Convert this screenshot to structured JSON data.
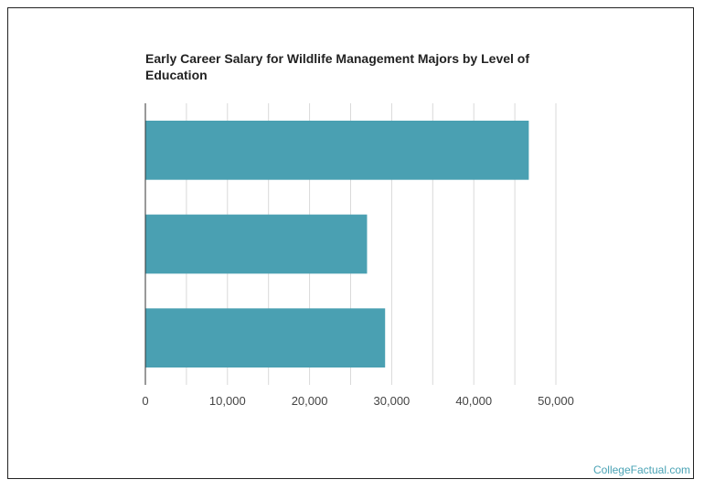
{
  "chart_data": {
    "type": "bar",
    "orientation": "horizontal",
    "title": "Early Career Salary for Wildlife Management Majors by Level of Education",
    "categories": [
      "",
      "",
      ""
    ],
    "values": [
      46700,
      27000,
      29200
    ],
    "xlim": [
      0,
      50000
    ],
    "xticks": [
      0,
      10000,
      20000,
      30000,
      40000,
      50000
    ],
    "xtick_labels": [
      "0",
      "10,000",
      "20,000",
      "30,000",
      "40,000",
      "50,000"
    ],
    "xlabel": "",
    "ylabel": "",
    "grid": true,
    "bar_color": "#4aa0b2",
    "grid_color": "#d9d9d9"
  },
  "credit": "CollegeFactual.com"
}
